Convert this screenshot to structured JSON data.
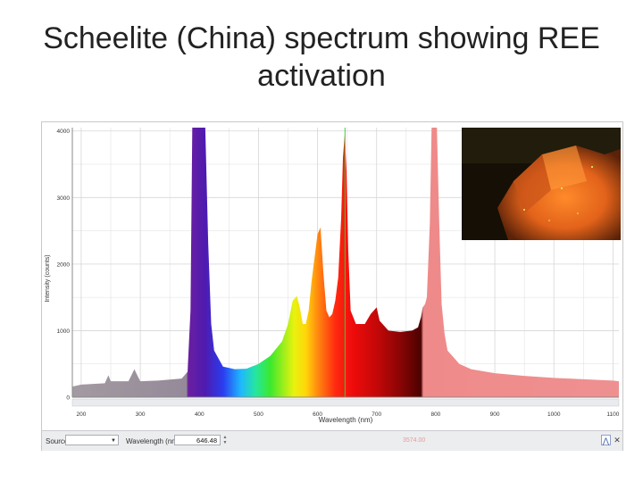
{
  "slide": {
    "title": "Scheelite (China) spectrum showing REE activation"
  },
  "toolbar": {
    "source_label": "Source:",
    "source_value": "",
    "wavelength_label": "Wavelength (nm):",
    "wavelength_value": "646.48",
    "intensity_readout": "3574.00",
    "icons": [
      "peak-tool-icon",
      "close-icon"
    ]
  },
  "photo": {
    "subject": "fluorescing-mineral-photo"
  },
  "colors": {
    "grid": "#d6d6d6",
    "axis": "#888888",
    "background": "#ffffff",
    "cursor": "#3ccf3c"
  },
  "chart_data": {
    "type": "area",
    "title": "",
    "xlabel": "Wavelength (nm)",
    "ylabel": "Intensity (counts)",
    "xlim": [
      185,
      1110
    ],
    "ylim": [
      0,
      4050
    ],
    "x_ticks": [
      200,
      300,
      400,
      500,
      600,
      700,
      800,
      900,
      1000,
      1100
    ],
    "y_ticks": [
      0,
      1000,
      2000,
      3000,
      4000
    ],
    "grid": true,
    "cursor_wavelength": 646.48,
    "series": [
      {
        "x": [
          185,
          200,
          240,
          246,
          250,
          280,
          290,
          296,
          300,
          330,
          370,
          380,
          385,
          388,
          395,
          400,
          405,
          410,
          415,
          420,
          425,
          440,
          460,
          480,
          500,
          520,
          540,
          550,
          558,
          565,
          570,
          575,
          580,
          585,
          590,
          600,
          605,
          610,
          615,
          620,
          625,
          630,
          635,
          640,
          643,
          646,
          649,
          652,
          656,
          665,
          680,
          690,
          700,
          705,
          710,
          720,
          740,
          760,
          770,
          775,
          778,
          782,
          785,
          790,
          793,
          797,
          802,
          806,
          810,
          815,
          820,
          840,
          860,
          900,
          950,
          1000,
          1050,
          1100,
          1110
        ],
        "y": [
          160,
          190,
          210,
          330,
          240,
          240,
          420,
          310,
          240,
          250,
          280,
          380,
          1300,
          4050,
          4050,
          4050,
          4050,
          4050,
          2300,
          1100,
          700,
          460,
          420,
          430,
          500,
          620,
          840,
          1100,
          1450,
          1520,
          1350,
          1100,
          1100,
          1300,
          1750,
          2450,
          2550,
          1850,
          1300,
          1200,
          1250,
          1450,
          1800,
          2700,
          3600,
          3950,
          3400,
          2200,
          1300,
          1100,
          1100,
          1250,
          1350,
          1150,
          1100,
          1000,
          980,
          1000,
          1050,
          1200,
          1350,
          1400,
          1500,
          2600,
          4050,
          4050,
          4050,
          2600,
          1400,
          950,
          700,
          500,
          420,
          360,
          320,
          290,
          270,
          250,
          240
        ]
      }
    ]
  }
}
